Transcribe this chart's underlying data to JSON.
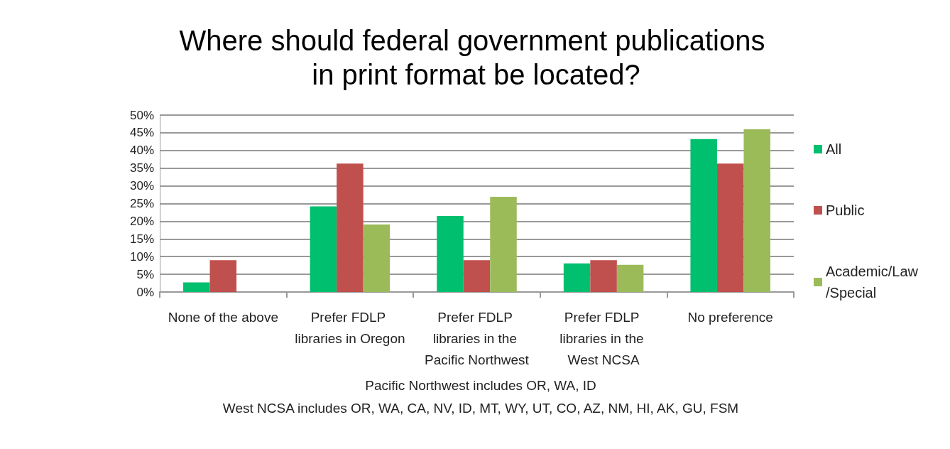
{
  "chart_data": {
    "type": "bar",
    "title": "Where should federal government publications in print format be located?",
    "categories": [
      "None of the above",
      "Prefer FDLP libraries in Oregon",
      "Prefer FDLP libraries in the Pacific Northwest",
      "Prefer FDLP libraries in the West NCSA",
      "No preference"
    ],
    "series": [
      {
        "name": "All",
        "color": "#00bf6f",
        "values": [
          2.7,
          24.2,
          21.5,
          8.1,
          43.2
        ]
      },
      {
        "name": "Public",
        "color": "#c0504d",
        "values": [
          9.0,
          36.3,
          9.0,
          9.0,
          36.3
        ]
      },
      {
        "name": "Academic/Law /Special",
        "color": "#9bbb59",
        "values": [
          0,
          19.1,
          26.9,
          7.7,
          46.0
        ]
      }
    ],
    "ylim": [
      0,
      50
    ],
    "yticks": [
      {
        "value": 0,
        "label": "0%"
      },
      {
        "value": 5,
        "label": "5%"
      },
      {
        "value": 10,
        "label": "10%"
      },
      {
        "value": 15,
        "label": "15%"
      },
      {
        "value": 20,
        "label": "20%"
      },
      {
        "value": 25,
        "label": "25%"
      },
      {
        "value": 30,
        "label": "30%"
      },
      {
        "value": 35,
        "label": "35%"
      },
      {
        "value": 40,
        "label": "40%"
      },
      {
        "value": 45,
        "label": "45%"
      },
      {
        "value": 50,
        "label": "50%"
      }
    ],
    "grid": "y",
    "legend": "right",
    "annotations": [
      "Pacific Northwest includes OR, WA, ID",
      "West NCSA includes OR, WA, CA, NV, ID, MT, WY, UT, CO, AZ, NM, HI, AK, GU, FSM"
    ]
  }
}
